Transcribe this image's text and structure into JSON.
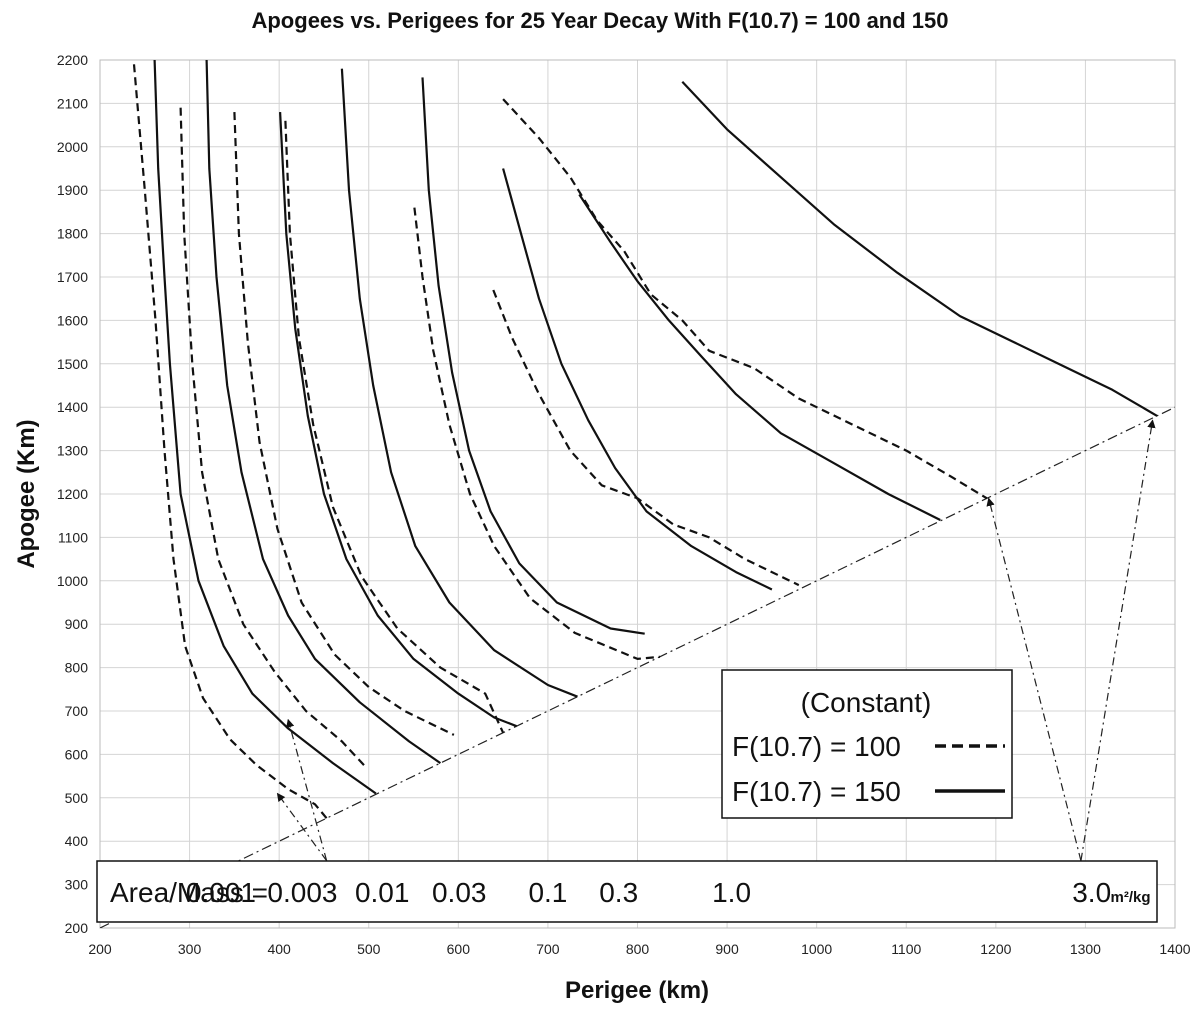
{
  "chart_data": {
    "type": "line",
    "title": "Apogees vs. Perigees for 25 Year Decay With F(10.7) = 100 and 150",
    "xlabel": "Perigee (km)",
    "ylabel": "Apogee (Km)",
    "xlim": [
      200,
      1400
    ],
    "ylim": [
      200,
      2200
    ],
    "xticks": [
      200,
      300,
      400,
      500,
      600,
      700,
      800,
      900,
      1000,
      1100,
      1200,
      1300,
      1400
    ],
    "yticks": [
      200,
      300,
      400,
      500,
      600,
      700,
      800,
      900,
      1000,
      1100,
      1200,
      1300,
      1400,
      1500,
      1600,
      1700,
      1800,
      1900,
      2000,
      2100,
      2200
    ],
    "grid": true,
    "legend": {
      "heading": "(Constant)",
      "entries": [
        {
          "label": "F(10.7) = 100",
          "style": "dashed"
        },
        {
          "label": "F(10.7) = 150",
          "style": "solid"
        }
      ],
      "placement": "bottom-right"
    },
    "area_mass_box": {
      "prefix": "Area/Mass =",
      "values": [
        {
          "text": "0.001",
          "x": 335
        },
        {
          "text": "0.003",
          "x": 426
        },
        {
          "text": "0.01",
          "x": 515
        },
        {
          "text": "0.03",
          "x": 601
        },
        {
          "text": "0.1",
          "x": 700
        },
        {
          "text": "0.3",
          "x": 779
        },
        {
          "text": "1.0",
          "x": 905
        },
        {
          "text": "3.0",
          "x": 1307
        }
      ],
      "unit": "m²/kg"
    },
    "reference_line": {
      "name": "circular orbit",
      "points": [
        [
          200,
          200
        ],
        [
          1400,
          1400
        ]
      ]
    },
    "series": [
      {
        "f107": 100,
        "area_mass": "0.001",
        "style": "dashed",
        "points": [
          [
            238,
            2190
          ],
          [
            250,
            1900
          ],
          [
            262,
            1600
          ],
          [
            272,
            1300
          ],
          [
            282,
            1050
          ],
          [
            295,
            850
          ],
          [
            315,
            730
          ],
          [
            345,
            635
          ],
          [
            375,
            575
          ],
          [
            410,
            520
          ],
          [
            440,
            485
          ],
          [
            453,
            453
          ]
        ]
      },
      {
        "f107": 150,
        "area_mass": "0.001",
        "style": "solid",
        "points": [
          [
            261,
            2200
          ],
          [
            265,
            1950
          ],
          [
            272,
            1700
          ],
          [
            278,
            1500
          ],
          [
            290,
            1200
          ],
          [
            310,
            1000
          ],
          [
            338,
            850
          ],
          [
            370,
            740
          ],
          [
            410,
            660
          ],
          [
            460,
            580
          ],
          [
            508,
            510
          ]
        ]
      },
      {
        "f107": 100,
        "area_mass": "0.003",
        "style": "dashed",
        "points": [
          [
            290,
            2090
          ],
          [
            294,
            1800
          ],
          [
            303,
            1500
          ],
          [
            314,
            1250
          ],
          [
            332,
            1050
          ],
          [
            360,
            900
          ],
          [
            395,
            790
          ],
          [
            430,
            700
          ],
          [
            470,
            630
          ],
          [
            497,
            570
          ]
        ]
      },
      {
        "f107": 150,
        "area_mass": "0.003",
        "style": "solid",
        "points": [
          [
            319,
            2200
          ],
          [
            322,
            1950
          ],
          [
            330,
            1700
          ],
          [
            342,
            1450
          ],
          [
            358,
            1250
          ],
          [
            382,
            1050
          ],
          [
            410,
            920
          ],
          [
            440,
            820
          ],
          [
            490,
            720
          ],
          [
            545,
            630
          ],
          [
            580,
            580
          ]
        ]
      },
      {
        "f107": 100,
        "area_mass": "0.01",
        "style": "dashed",
        "points": [
          [
            350,
            2080
          ],
          [
            355,
            1800
          ],
          [
            365,
            1550
          ],
          [
            378,
            1320
          ],
          [
            398,
            1120
          ],
          [
            425,
            950
          ],
          [
            462,
            830
          ],
          [
            500,
            755
          ],
          [
            540,
            700
          ],
          [
            595,
            645
          ]
        ]
      },
      {
        "f107": 150,
        "area_mass": "0.01",
        "style": "solid",
        "points": [
          [
            401,
            2080
          ],
          [
            408,
            1800
          ],
          [
            418,
            1580
          ],
          [
            432,
            1380
          ],
          [
            450,
            1200
          ],
          [
            475,
            1050
          ],
          [
            510,
            920
          ],
          [
            550,
            820
          ],
          [
            600,
            740
          ],
          [
            640,
            685
          ],
          [
            665,
            665
          ]
        ]
      },
      {
        "f107": 100,
        "area_mass": "0.03",
        "style": "dashed",
        "points": [
          [
            407,
            2060
          ],
          [
            412,
            1800
          ],
          [
            422,
            1560
          ],
          [
            438,
            1360
          ],
          [
            460,
            1170
          ],
          [
            492,
            1010
          ],
          [
            532,
            890
          ],
          [
            580,
            800
          ],
          [
            630,
            740
          ],
          [
            650,
            650
          ]
        ]
      },
      {
        "f107": 150,
        "area_mass": "0.03",
        "style": "solid",
        "points": [
          [
            470,
            2180
          ],
          [
            478,
            1900
          ],
          [
            490,
            1650
          ],
          [
            505,
            1450
          ],
          [
            525,
            1250
          ],
          [
            552,
            1080
          ],
          [
            590,
            950
          ],
          [
            640,
            840
          ],
          [
            700,
            760
          ],
          [
            733,
            733
          ]
        ]
      },
      {
        "f107": 100,
        "area_mass": "0.1",
        "style": "dashed",
        "points": [
          [
            551,
            1860
          ],
          [
            560,
            1700
          ],
          [
            572,
            1530
          ],
          [
            590,
            1360
          ],
          [
            613,
            1200
          ],
          [
            640,
            1080
          ],
          [
            680,
            960
          ],
          [
            730,
            880
          ],
          [
            800,
            820
          ],
          [
            825,
            825
          ]
        ]
      },
      {
        "f107": 150,
        "area_mass": "0.1",
        "style": "solid",
        "points": [
          [
            560,
            2160
          ],
          [
            567,
            1900
          ],
          [
            578,
            1680
          ],
          [
            593,
            1480
          ],
          [
            612,
            1300
          ],
          [
            636,
            1160
          ],
          [
            668,
            1040
          ],
          [
            710,
            950
          ],
          [
            770,
            890
          ],
          [
            808,
            878
          ]
        ]
      },
      {
        "f107": 100,
        "area_mass": "0.3",
        "style": "dashed",
        "points": [
          [
            639,
            1670
          ],
          [
            660,
            1560
          ],
          [
            690,
            1430
          ],
          [
            725,
            1300
          ],
          [
            760,
            1220
          ],
          [
            800,
            1190
          ],
          [
            840,
            1130
          ],
          [
            880,
            1100
          ],
          [
            920,
            1050
          ],
          [
            980,
            990
          ]
        ]
      },
      {
        "f107": 150,
        "area_mass": "0.3",
        "style": "solid",
        "points": [
          [
            650,
            1950
          ],
          [
            670,
            1800
          ],
          [
            690,
            1650
          ],
          [
            715,
            1500
          ],
          [
            745,
            1370
          ],
          [
            775,
            1260
          ],
          [
            810,
            1160
          ],
          [
            860,
            1080
          ],
          [
            910,
            1020
          ],
          [
            950,
            980
          ]
        ]
      },
      {
        "f107": 100,
        "area_mass": "1.0",
        "style": "dashed",
        "points": [
          [
            650,
            2110
          ],
          [
            690,
            2020
          ],
          [
            725,
            1930
          ],
          [
            755,
            1830
          ],
          [
            785,
            1760
          ],
          [
            815,
            1660
          ],
          [
            850,
            1600
          ],
          [
            880,
            1530
          ],
          [
            930,
            1490
          ],
          [
            980,
            1420
          ],
          [
            1040,
            1360
          ],
          [
            1100,
            1300
          ],
          [
            1150,
            1240
          ],
          [
            1190,
            1190
          ]
        ]
      },
      {
        "f107": 150,
        "area_mass": "1.0",
        "style": "solid",
        "points": [
          [
            735,
            1890
          ],
          [
            770,
            1780
          ],
          [
            800,
            1690
          ],
          [
            835,
            1600
          ],
          [
            870,
            1520
          ],
          [
            910,
            1430
          ],
          [
            960,
            1340
          ],
          [
            1020,
            1270
          ],
          [
            1080,
            1200
          ],
          [
            1138,
            1140
          ]
        ]
      },
      {
        "f107": 150,
        "area_mass": "3.0",
        "style": "solid",
        "points": [
          [
            850,
            2150
          ],
          [
            900,
            2040
          ],
          [
            960,
            1930
          ],
          [
            1020,
            1820
          ],
          [
            1090,
            1710
          ],
          [
            1160,
            1610
          ],
          [
            1220,
            1550
          ],
          [
            1280,
            1490
          ],
          [
            1330,
            1440
          ],
          [
            1380,
            1380
          ]
        ]
      }
    ],
    "annotations": [
      {
        "kind": "arrow",
        "from": [
          453,
          355
        ],
        "to": [
          398,
          510
        ],
        "style": "dash-dot"
      },
      {
        "kind": "arrow",
        "from": [
          453,
          355
        ],
        "to": [
          410,
          680
        ],
        "style": "dash-dot"
      },
      {
        "kind": "arrow",
        "from": [
          1295,
          355
        ],
        "to": [
          1192,
          1190
        ],
        "style": "dash-dot"
      },
      {
        "kind": "arrow",
        "from": [
          1295,
          355
        ],
        "to": [
          1375,
          1370
        ],
        "style": "dash-dot"
      }
    ]
  }
}
